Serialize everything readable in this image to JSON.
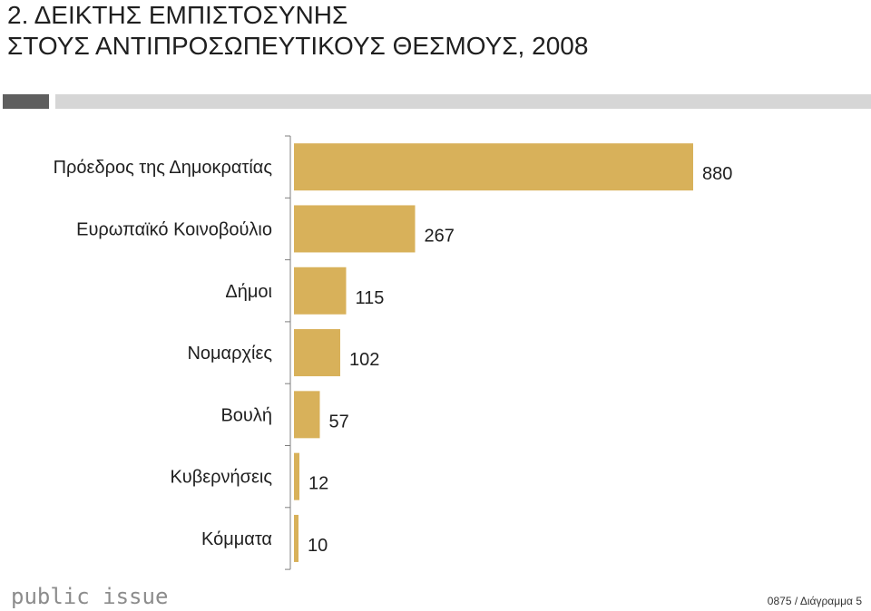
{
  "header": {
    "title_line1": "2. ΔΕΙΚΤΗΣ ΕΜΠΙΣΤΟΣΥΝΗΣ",
    "title_line2": "ΣΤΟΥΣ ΑΝΤΙΠΡΟΣΩΠΕΥΤΙΚΟΥΣ ΘΕΣΜΟΥΣ, 2008"
  },
  "footer": {
    "logo_text": "public issue",
    "note": "0875 / Διάγραμμα 5"
  },
  "colors": {
    "bar": "#d8b15a",
    "axis": "#7f7f7f",
    "text": "#1f1f1f",
    "deco_dark": "#5f5f5f",
    "deco_light": "#d6d6d6"
  },
  "chart_data": {
    "type": "bar",
    "orientation": "horizontal",
    "categories": [
      "Πρόεδρος της Δημοκρατίας",
      "Ευρωπαϊκό Κοινοβούλιο",
      "Δήμοι",
      "Νομαρχίες",
      "Βουλή",
      "Κυβερνήσεις",
      "Κόμματα"
    ],
    "values": [
      880,
      267,
      115,
      102,
      57,
      12,
      10
    ],
    "value_labels": [
      "880",
      "267",
      "115",
      "102",
      "57",
      "12",
      "10"
    ],
    "xlim": [
      0,
      1000
    ],
    "grid": false,
    "legend": "none"
  }
}
